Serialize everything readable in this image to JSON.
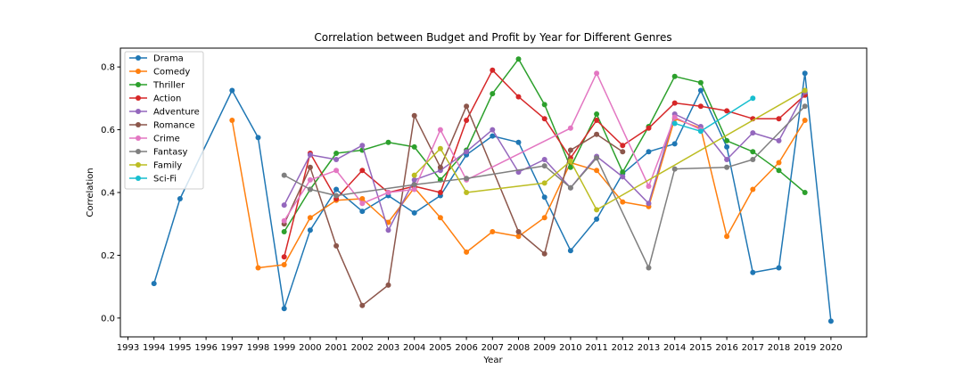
{
  "chart_data": {
    "type": "line",
    "title": "Correlation between Budget and Profit by Year for Different Genres",
    "xlabel": "Year",
    "ylabel": "Correlation",
    "xlim": [
      1993,
      2020
    ],
    "ylim": [
      -0.06,
      0.86
    ],
    "x_ticks": [
      1993,
      1994,
      1995,
      1996,
      1997,
      1998,
      1999,
      2000,
      2001,
      2002,
      2003,
      2004,
      2005,
      2006,
      2007,
      2008,
      2009,
      2010,
      2011,
      2012,
      2013,
      2014,
      2015,
      2016,
      2017,
      2018,
      2019,
      2020
    ],
    "y_ticks": [
      0.0,
      0.2,
      0.4,
      0.6,
      0.8
    ],
    "y_tick_labels": [
      "0.0",
      "0.2",
      "0.4",
      "0.6",
      "0.8"
    ],
    "grid": false,
    "legend_position": "top-left",
    "series": [
      {
        "name": "Drama",
        "color": "#1f77b4",
        "points": [
          [
            1994,
            0.11
          ],
          [
            1995,
            0.38
          ],
          [
            1997,
            0.725
          ],
          [
            1998,
            0.575
          ],
          [
            1999,
            0.03
          ],
          [
            2000,
            0.28
          ],
          [
            2001,
            0.41
          ],
          [
            2002,
            0.34
          ],
          [
            2003,
            0.39
          ],
          [
            2004,
            0.335
          ],
          [
            2005,
            0.39
          ],
          [
            2006,
            0.52
          ],
          [
            2007,
            0.58
          ],
          [
            2008,
            0.56
          ],
          [
            2009,
            0.385
          ],
          [
            2010,
            0.215
          ],
          [
            2011,
            0.315
          ],
          [
            2012,
            0.46
          ],
          [
            2013,
            0.53
          ],
          [
            2014,
            0.555
          ],
          [
            2015,
            0.725
          ],
          [
            2016,
            0.545
          ],
          [
            2017,
            0.145
          ],
          [
            2018,
            0.16
          ],
          [
            2019,
            0.78
          ],
          [
            2020,
            -0.01
          ]
        ]
      },
      {
        "name": "Comedy",
        "color": "#ff7f0e",
        "points": [
          [
            1997,
            0.63
          ],
          [
            1998,
            0.16
          ],
          [
            1999,
            0.17
          ],
          [
            2000,
            0.32
          ],
          [
            2001,
            0.375
          ],
          [
            2002,
            0.38
          ],
          [
            2003,
            0.305
          ],
          [
            2004,
            0.415
          ],
          [
            2005,
            0.32
          ],
          [
            2006,
            0.21
          ],
          [
            2007,
            0.275
          ],
          [
            2008,
            0.26
          ],
          [
            2009,
            0.32
          ],
          [
            2010,
            0.495
          ],
          [
            2011,
            0.47
          ],
          [
            2012,
            0.37
          ],
          [
            2013,
            0.355
          ],
          [
            2014,
            0.635
          ],
          [
            2015,
            0.605
          ],
          [
            2016,
            0.26
          ],
          [
            2017,
            0.41
          ],
          [
            2018,
            0.495
          ],
          [
            2019,
            0.63
          ]
        ]
      },
      {
        "name": "Thriller",
        "color": "#2ca02c",
        "points": [
          [
            1999,
            0.275
          ],
          [
            2000,
            0.41
          ],
          [
            2001,
            0.525
          ],
          [
            2002,
            0.535
          ],
          [
            2003,
            0.56
          ],
          [
            2004,
            0.545
          ],
          [
            2005,
            0.44
          ],
          [
            2006,
            0.535
          ],
          [
            2007,
            0.715
          ],
          [
            2008,
            0.825
          ],
          [
            2009,
            0.68
          ],
          [
            2010,
            0.48
          ],
          [
            2011,
            0.65
          ],
          [
            2012,
            0.465
          ],
          [
            2013,
            0.61
          ],
          [
            2014,
            0.77
          ],
          [
            2015,
            0.75
          ],
          [
            2016,
            0.565
          ],
          [
            2017,
            0.53
          ],
          [
            2018,
            0.47
          ],
          [
            2019,
            0.4
          ]
        ]
      },
      {
        "name": "Action",
        "color": "#d62728",
        "points": [
          [
            1999,
            0.195
          ],
          [
            2000,
            0.525
          ],
          [
            2001,
            0.38
          ],
          [
            2002,
            0.47
          ],
          [
            2003,
            0.4
          ],
          [
            2004,
            0.42
          ],
          [
            2005,
            0.4
          ],
          [
            2006,
            0.63
          ],
          [
            2007,
            0.79
          ],
          [
            2008,
            0.705
          ],
          [
            2009,
            0.635
          ],
          [
            2010,
            0.51
          ],
          [
            2011,
            0.63
          ],
          [
            2012,
            0.55
          ],
          [
            2013,
            0.605
          ],
          [
            2014,
            0.685
          ],
          [
            2015,
            0.675
          ],
          [
            2016,
            0.66
          ],
          [
            2017,
            0.635
          ],
          [
            2018,
            0.635
          ],
          [
            2019,
            0.71
          ]
        ]
      },
      {
        "name": "Adventure",
        "color": "#9467bd",
        "points": [
          [
            1999,
            0.36
          ],
          [
            2000,
            0.52
          ],
          [
            2001,
            0.505
          ],
          [
            2002,
            0.55
          ],
          [
            2003,
            0.28
          ],
          [
            2004,
            0.44
          ],
          [
            2005,
            0.47
          ],
          [
            2006,
            0.53
          ],
          [
            2007,
            0.6
          ],
          [
            2008,
            0.465
          ],
          [
            2009,
            0.505
          ],
          [
            2010,
            0.415
          ],
          [
            2011,
            0.515
          ],
          [
            2012,
            0.45
          ],
          [
            2013,
            0.365
          ],
          [
            2014,
            0.65
          ],
          [
            2015,
            0.61
          ],
          [
            2016,
            0.505
          ],
          [
            2017,
            0.59
          ],
          [
            2018,
            0.565
          ],
          [
            2019,
            0.72
          ]
        ]
      },
      {
        "name": "Romance",
        "color": "#8c564b",
        "points": [
          [
            1999,
            0.3
          ],
          [
            2000,
            0.48
          ],
          [
            2001,
            0.23
          ],
          [
            2002,
            0.04
          ],
          [
            2003,
            0.105
          ],
          [
            2004,
            0.645
          ],
          [
            2005,
            0.48
          ],
          [
            2006,
            0.675
          ],
          [
            2008,
            0.275
          ],
          [
            2009,
            0.205
          ],
          [
            2010,
            0.535
          ],
          [
            2011,
            0.585
          ],
          [
            2012,
            0.53
          ]
        ]
      },
      {
        "name": "Crime",
        "color": "#e377c2",
        "points": [
          [
            1999,
            0.31
          ],
          [
            2000,
            0.44
          ],
          [
            2001,
            0.47
          ],
          [
            2002,
            0.365
          ],
          [
            2003,
            0.4
          ],
          [
            2004,
            0.41
          ],
          [
            2005,
            0.6
          ],
          [
            2006,
            0.44
          ],
          [
            2010,
            0.605
          ],
          [
            2011,
            0.78
          ],
          [
            2013,
            0.42
          ],
          [
            2014,
            0.64
          ],
          [
            2015,
            0.6
          ]
        ]
      },
      {
        "name": "Fantasy",
        "color": "#7f7f7f",
        "points": [
          [
            1999,
            0.455
          ],
          [
            2000,
            0.41
          ],
          [
            2001,
            0.39
          ],
          [
            2004,
            0.425
          ],
          [
            2006,
            0.445
          ],
          [
            2009,
            0.485
          ],
          [
            2010,
            0.415
          ],
          [
            2011,
            0.51
          ],
          [
            2013,
            0.16
          ],
          [
            2014,
            0.475
          ],
          [
            2016,
            0.48
          ],
          [
            2017,
            0.505
          ],
          [
            2019,
            0.675
          ]
        ]
      },
      {
        "name": "Family",
        "color": "#bcbd22",
        "points": [
          [
            2004,
            0.455
          ],
          [
            2005,
            0.54
          ],
          [
            2006,
            0.4
          ],
          [
            2009,
            0.43
          ],
          [
            2010,
            0.5
          ],
          [
            2011,
            0.345
          ],
          [
            2019,
            0.725
          ]
        ]
      },
      {
        "name": "Sci-Fi",
        "color": "#17becf",
        "points": [
          [
            2014,
            0.62
          ],
          [
            2015,
            0.595
          ],
          [
            2017,
            0.7
          ]
        ]
      }
    ]
  }
}
